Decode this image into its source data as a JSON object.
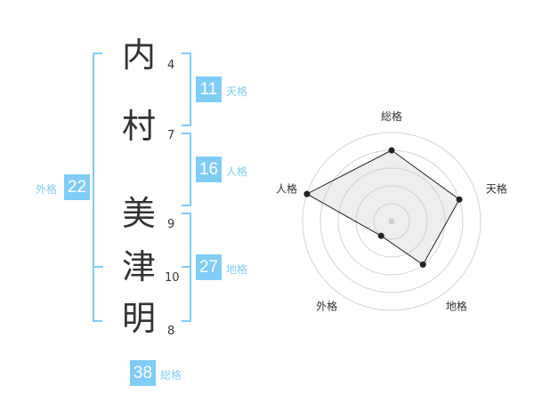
{
  "name": {
    "characters": [
      {
        "char": "内",
        "strokes": "4"
      },
      {
        "char": "村",
        "strokes": "7"
      },
      {
        "char": "美",
        "strokes": "9"
      },
      {
        "char": "津",
        "strokes": "10"
      },
      {
        "char": "明",
        "strokes": "8"
      }
    ]
  },
  "kaku": {
    "tenkaku": {
      "label": "天格",
      "value": "11"
    },
    "jinkaku": {
      "label": "人格",
      "value": "16"
    },
    "chikaku": {
      "label": "地格",
      "value": "27"
    },
    "gaikaku": {
      "label": "外格",
      "value": "22"
    },
    "soukaku": {
      "label": "総格",
      "value": "38"
    }
  },
  "colors": {
    "accent": "#7fccf7",
    "text": "#333333"
  },
  "chart_data": {
    "type": "radar",
    "axes": [
      "総格",
      "天格",
      "地格",
      "外格",
      "人格"
    ],
    "values": [
      4,
      4,
      3,
      1,
      5
    ],
    "max": 5,
    "rings": 5
  }
}
